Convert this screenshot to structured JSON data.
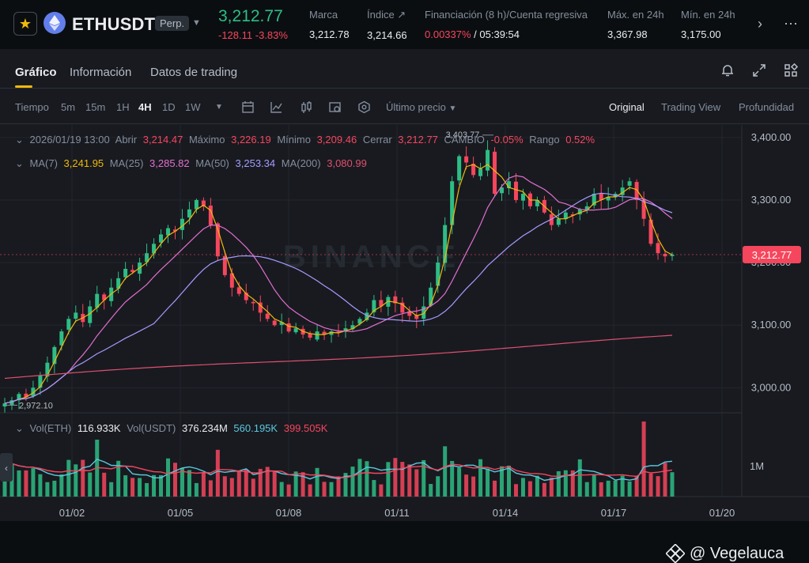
{
  "header": {
    "symbol": "ETHUSDT",
    "contract_type": "Perp.",
    "last_price": "3,212.77",
    "change": "-128.11",
    "change_pct": "-3.83%",
    "stats": [
      {
        "label": "Marca",
        "value": "3,212.78"
      },
      {
        "label": "Índice ↗",
        "value": "3,214.66"
      },
      {
        "label": "Financiación (8 h)/Cuenta regresiva",
        "value_red": "0.00337%",
        "value": " / 05:39:54"
      },
      {
        "label": "Máx. en 24h",
        "value": "3,367.98"
      },
      {
        "label": "Mín. en 24h",
        "value": "3,175.00"
      }
    ]
  },
  "tabs": [
    {
      "label": "Gráfico",
      "active": true
    },
    {
      "label": "Información",
      "active": false
    },
    {
      "label": "Datos de trading",
      "active": false
    }
  ],
  "toolbar": {
    "time_label": "Tiempo",
    "intervals": [
      "5m",
      "15m",
      "1H",
      "4H",
      "1D",
      "1W"
    ],
    "active_interval": "4H",
    "price_type": "Último precio",
    "views": [
      "Original",
      "Trading View",
      "Profundidad"
    ],
    "active_view": "Original"
  },
  "ohlc_legend": {
    "date": "2026/01/19 13:00",
    "open_label": "Abrir",
    "open": "3,214.47",
    "high_label": "Máximo",
    "high": "3,226.19",
    "low_label": "Mínimo",
    "low": "3,209.46",
    "close_label": "Cerrar",
    "close": "3,212.77",
    "change_label": "CAMBIO",
    "change": "-0.05%",
    "range_label": "Rango",
    "range": "0.52%"
  },
  "ma_legend": [
    {
      "label": "MA(7)",
      "value": "3,241.95",
      "color": "#f0b90b"
    },
    {
      "label": "MA(25)",
      "value": "3,285.82",
      "color": "#e46fcf"
    },
    {
      "label": "MA(50)",
      "value": "3,253.34",
      "color": "#a79bff"
    },
    {
      "label": "MA(200)",
      "value": "3,080.99",
      "color": "#e0506e"
    }
  ],
  "vol_legend": {
    "vol_eth_label": "Vol(ETH)",
    "vol_eth": "116.933K",
    "vol_usdt_label": "Vol(USDT)",
    "vol_usdt": "376.234M",
    "ma1": "560.195K",
    "ma2": "399.505K",
    "ma1_color": "#5bc8dd",
    "ma2_color": "#f6465d"
  },
  "price_axis": [
    "3,400.00",
    "3,300.00",
    "3,200.00",
    "3,100.00",
    "3,000.00"
  ],
  "current_price_tag": "3,212.77",
  "high_marker": "3,403.77",
  "low_marker": "2,972.10",
  "vol_axis": "1M",
  "date_axis": [
    "01/02",
    "01/05",
    "01/08",
    "01/11",
    "01/14",
    "01/17",
    "01/20"
  ],
  "watermark": "BINANCE",
  "credit": "@ Vegelauca",
  "colors": {
    "up": "#2ebd85",
    "down": "#f6465d",
    "accent": "#f0b90b"
  },
  "chart_data": {
    "type": "candlestick",
    "timeframe": "4H",
    "ylim": [
      2960,
      3420
    ],
    "y_ticks": [
      3000,
      3100,
      3200,
      3300,
      3400
    ],
    "x_ticks": [
      "01/02",
      "01/05",
      "01/08",
      "01/11",
      "01/14",
      "01/17",
      "01/20"
    ],
    "close_series": [
      2975,
      2980,
      2990,
      2985,
      3000,
      3020,
      3040,
      3065,
      3090,
      3110,
      3120,
      3105,
      3130,
      3150,
      3140,
      3160,
      3175,
      3190,
      3185,
      3200,
      3215,
      3230,
      3245,
      3255,
      3250,
      3270,
      3285,
      3300,
      3290,
      3260,
      3210,
      3180,
      3160,
      3150,
      3140,
      3135,
      3120,
      3110,
      3100,
      3105,
      3090,
      3095,
      3085,
      3080,
      3090,
      3085,
      3090,
      3088,
      3095,
      3100,
      3110,
      3120,
      3140,
      3130,
      3145,
      3135,
      3120,
      3115,
      3110,
      3130,
      3160,
      3200,
      3260,
      3330,
      3370,
      3360,
      3340,
      3350,
      3380,
      3310,
      3320,
      3330,
      3300,
      3310,
      3290,
      3300,
      3280,
      3260,
      3270,
      3280,
      3275,
      3285,
      3290,
      3310,
      3300,
      3305,
      3310,
      3320,
      3330,
      3300,
      3270,
      3230,
      3215,
      3210,
      3212.77
    ],
    "ma_series": [
      {
        "name": "MA(7)",
        "color": "#f0b90b"
      },
      {
        "name": "MA(25)",
        "color": "#e46fcf"
      },
      {
        "name": "MA(50)",
        "color": "#a79bff"
      },
      {
        "name": "MA(200)",
        "color": "#e0506e"
      }
    ]
  }
}
